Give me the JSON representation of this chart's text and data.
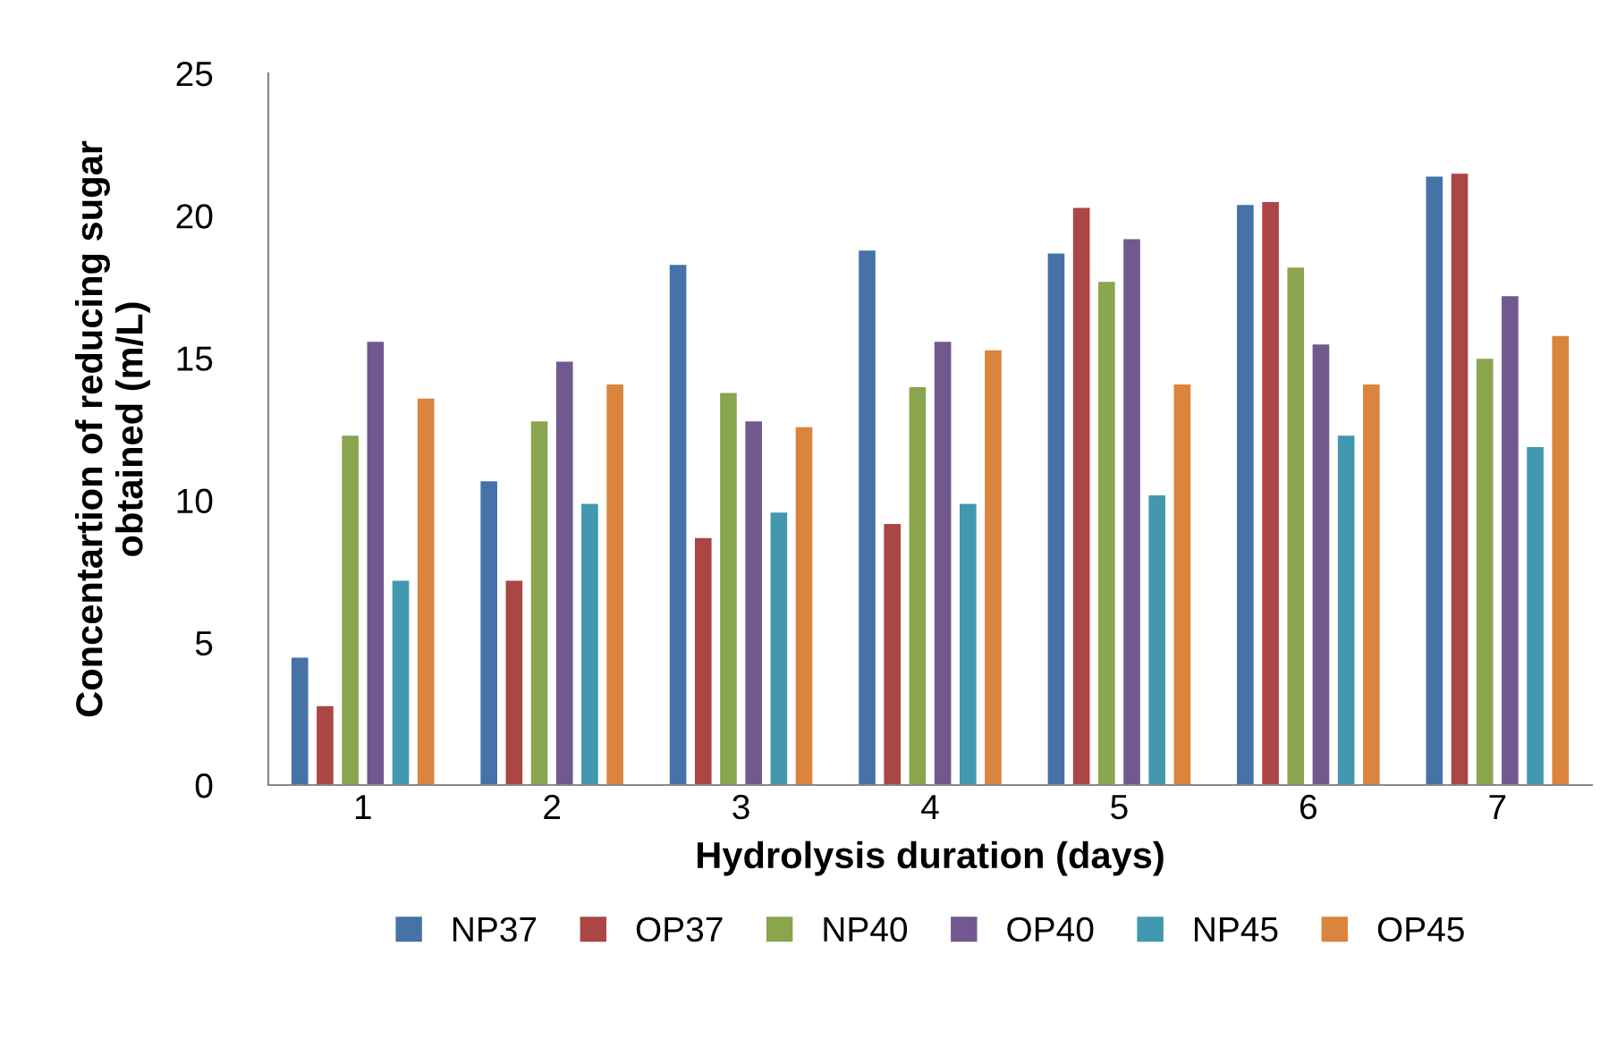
{
  "chart_data": {
    "type": "bar",
    "xlabel": "Hydrolysis duration (days)",
    "ylabel": "Concentartion of reducing sugar\nobtained (m/L)",
    "categories": [
      "1",
      "2",
      "3",
      "4",
      "5",
      "6",
      "7"
    ],
    "series": [
      {
        "name": "NP37",
        "color": "#4572a7",
        "values": [
          4.5,
          10.7,
          18.3,
          18.8,
          18.7,
          20.4,
          21.4
        ]
      },
      {
        "name": "OP37",
        "color": "#aa4643",
        "values": [
          2.8,
          7.2,
          8.7,
          9.2,
          20.3,
          20.5,
          21.5
        ]
      },
      {
        "name": "NP40",
        "color": "#89a54e",
        "values": [
          12.3,
          12.8,
          13.8,
          14.0,
          17.7,
          18.2,
          15.0
        ]
      },
      {
        "name": "OP40",
        "color": "#71588f",
        "values": [
          15.6,
          14.9,
          12.8,
          15.6,
          19.2,
          15.5,
          17.2
        ]
      },
      {
        "name": "NP45",
        "color": "#4198af",
        "values": [
          7.2,
          9.9,
          9.6,
          9.9,
          10.2,
          12.3,
          11.9
        ]
      },
      {
        "name": "OP45",
        "color": "#db843d",
        "values": [
          13.6,
          14.1,
          12.6,
          15.3,
          14.1,
          14.1,
          15.8
        ]
      }
    ],
    "ylim": [
      0,
      25
    ],
    "yticks": [
      0,
      5,
      10,
      15,
      20,
      25
    ],
    "grid": false,
    "legend": "bottom"
  }
}
